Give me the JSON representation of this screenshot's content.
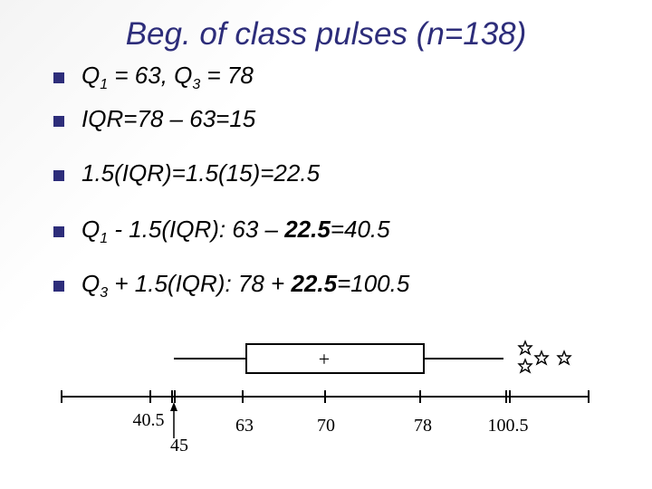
{
  "title": "Beg. of class pulses (n=138)",
  "bullets": [
    {
      "q": "Q",
      "sub": "1",
      "mid": " = 63, Q",
      "sub2": "3",
      "rest": " = 78"
    },
    {
      "text": "IQR=78 – 63=15"
    },
    {
      "text": "1.5(IQR)=1.5(15)=22.5"
    },
    {
      "q": "Q",
      "sub": "1",
      "rest": " - 1.5(IQR): 63 – ",
      "bold": "22.5",
      "end": "=40.5"
    },
    {
      "q": "Q",
      "sub": "3",
      "rest": " + 1.5(IQR): 78 + ",
      "bold": "22.5",
      "end": "=100.5"
    }
  ],
  "axis_labels": [
    "40.5",
    "45",
    "63",
    "70",
    "78",
    "100.5"
  ],
  "boxplot": {
    "q1": 63,
    "q3": 78,
    "mean_marker": "+",
    "lower_fence": 40.5,
    "upper_fence": 100.5,
    "lower_whisker_end": 45,
    "outliers": [
      104,
      105,
      107,
      110
    ]
  }
}
